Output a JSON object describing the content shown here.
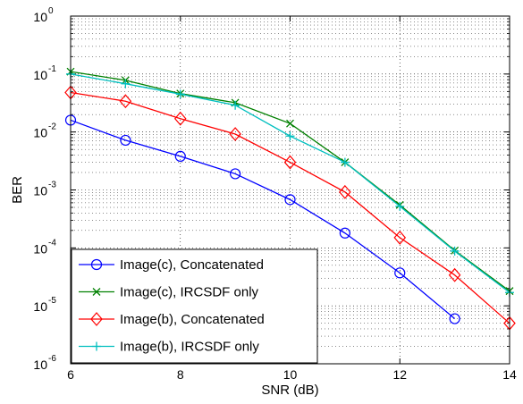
{
  "chart_data": {
    "type": "line",
    "xlabel": "SNR (dB)",
    "ylabel": "BER",
    "y_scale": "log",
    "xlim": [
      6,
      14
    ],
    "ylim": [
      1e-06,
      1
    ],
    "x_ticks": [
      6,
      8,
      10,
      12,
      14
    ],
    "y_ticks": [
      {
        "value": 1,
        "mantissa": "10",
        "exponent": "0"
      },
      {
        "value": 0.1,
        "mantissa": "10",
        "exponent": "-1"
      },
      {
        "value": 0.01,
        "mantissa": "10",
        "exponent": "-2"
      },
      {
        "value": 0.001,
        "mantissa": "10",
        "exponent": "-3"
      },
      {
        "value": 0.0001,
        "mantissa": "10",
        "exponent": "-4"
      },
      {
        "value": 1e-05,
        "mantissa": "10",
        "exponent": "-5"
      },
      {
        "value": 1e-06,
        "mantissa": "10",
        "exponent": "-6"
      }
    ],
    "grid": true,
    "grid_style": "dotted",
    "legend_position": "bottom-left",
    "series": [
      {
        "name": "Image(c), Concatenated",
        "color": "#0000ff",
        "marker": "circle",
        "x": [
          6,
          7,
          8,
          9,
          10,
          11,
          12,
          13
        ],
        "y": [
          0.016,
          0.0072,
          0.0038,
          0.0019,
          0.00068,
          0.00018,
          3.7e-05,
          6e-06
        ]
      },
      {
        "name": "Image(c), IRCSDF only",
        "color": "#008000",
        "marker": "x",
        "x": [
          6,
          7,
          8,
          9,
          10,
          11,
          12,
          13,
          14
        ],
        "y": [
          0.11,
          0.078,
          0.046,
          0.032,
          0.014,
          0.003,
          0.00055,
          9e-05,
          1.8e-05
        ]
      },
      {
        "name": "Image(b), Concatenated",
        "color": "#ff0000",
        "marker": "diamond",
        "x": [
          6,
          7,
          8,
          9,
          10,
          11,
          12,
          13,
          14
        ],
        "y": [
          0.048,
          0.034,
          0.017,
          0.0092,
          0.003,
          0.00092,
          0.00015,
          3.4e-05,
          5e-06
        ]
      },
      {
        "name": "Image(b), IRCSDF only",
        "color": "#00bfbf",
        "marker": "plus",
        "x": [
          6,
          7,
          8,
          9,
          10,
          11,
          12,
          13,
          14
        ],
        "y": [
          0.1,
          0.068,
          0.045,
          0.029,
          0.0085,
          0.003,
          0.00052,
          8.8e-05,
          1.7e-05
        ]
      }
    ]
  }
}
